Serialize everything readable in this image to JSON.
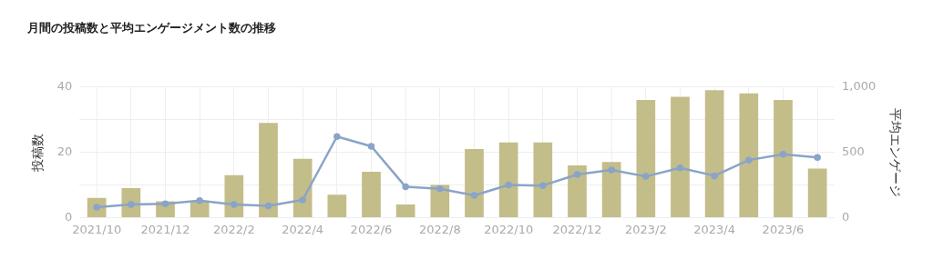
{
  "chart_data": {
    "type": "bar",
    "title": "月間の投稿数と平均エンゲージメント数の推移",
    "categories": [
      "2021/10",
      null,
      "2021/12",
      null,
      "2022/2",
      null,
      "2022/4",
      null,
      "2022/6",
      null,
      "2022/8",
      null,
      "2022/10",
      null,
      "2022/12",
      null,
      "2023/2",
      null,
      "2023/4",
      null,
      "2023/6",
      null
    ],
    "series": [
      {
        "color": "#c3bd8a",
        "values": [
          6,
          9,
          5,
          5,
          13,
          29,
          18,
          7,
          14,
          4,
          10,
          21,
          23,
          23,
          16,
          17,
          36,
          37,
          39,
          38,
          36,
          15
        ]
      },
      {
        "type": "line",
        "axis": "y2",
        "color": "#8aa4c8",
        "values": [
          80,
          100,
          105,
          130,
          100,
          90,
          135,
          620,
          545,
          235,
          220,
          170,
          250,
          245,
          330,
          365,
          315,
          380,
          320,
          440,
          485,
          460
        ]
      }
    ],
    "ylabel": "投稿数",
    "y2label": "平均エンゲージ",
    "ylim": [
      0,
      40
    ],
    "yticks": [
      0,
      {
        "value": 10,
        "label": null
      },
      20,
      {
        "value": 30,
        "label": null
      },
      40
    ],
    "y2lim": [
      0,
      1000
    ],
    "y2ticks": [
      {
        "value": 0,
        "label": "0"
      },
      {
        "value": 250,
        "label": null
      },
      {
        "value": 500,
        "label": "500"
      },
      {
        "value": 750,
        "label": null
      },
      {
        "value": 1000,
        "label": "1,000"
      }
    ],
    "grid": true,
    "legend": false,
    "marker": "circle",
    "line_style": "solid"
  }
}
